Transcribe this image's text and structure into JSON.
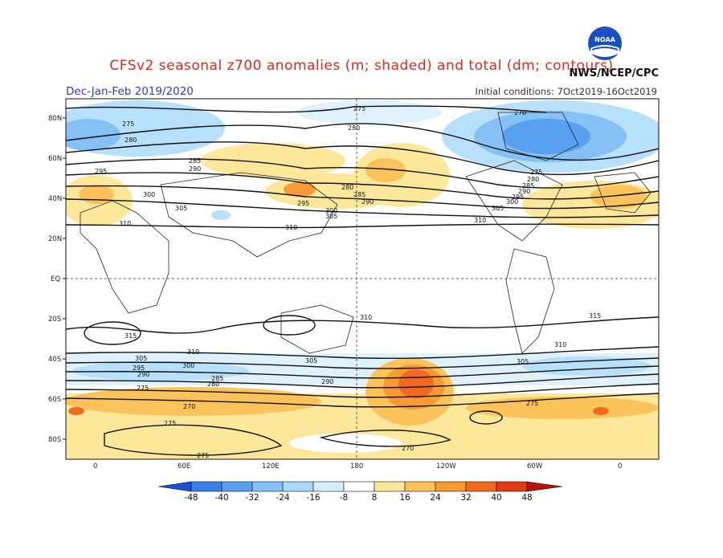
{
  "header": {
    "title": "CFSv2 seasonal z700 anomalies (m; shaded) and total (dm; contours)",
    "period": "Dec-Jan-Feb 2019/2020",
    "initial_conditions": "Initial conditions: 7Oct2019-16Oct2019",
    "agency": "NWS/NCEP/CPC",
    "logo_text": "NOAA"
  },
  "map": {
    "lat_labels": [
      "80N",
      "60N",
      "40N",
      "20N",
      "EQ",
      "20S",
      "40S",
      "60S",
      "80S"
    ],
    "lon_labels": [
      "0",
      "60E",
      "120E",
      "180",
      "120W",
      "60W",
      "0"
    ],
    "contour_labels": [
      "275",
      "280",
      "285",
      "290",
      "295",
      "300",
      "305",
      "310",
      "315",
      "270"
    ]
  },
  "colorbar": {
    "levels": [
      "-48",
      "-40",
      "-32",
      "-24",
      "-16",
      "-8",
      "8",
      "16",
      "24",
      "32",
      "40",
      "48"
    ],
    "colors": [
      "#1e4fd8",
      "#3a7ee8",
      "#5aa0f0",
      "#86c1f6",
      "#b6e0fb",
      "#ffffff",
      "#fde79a",
      "#fcc35a",
      "#f79a35",
      "#f26a1f",
      "#e33a14",
      "#c3150e",
      "#9d0b06"
    ]
  }
}
